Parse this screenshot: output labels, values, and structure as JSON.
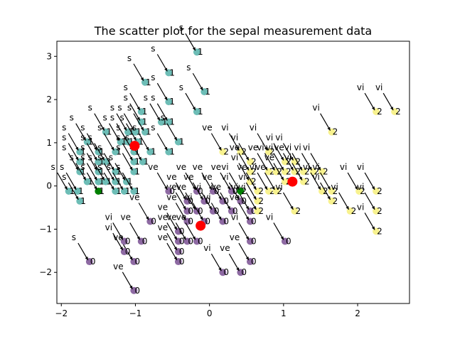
{
  "chart_data": {
    "type": "scatter",
    "title": "The scatter plot for the sepal measurement data",
    "xlabel": "",
    "ylabel": "",
    "xlim": [
      -2.06,
      2.7
    ],
    "ylim": [
      -2.72,
      3.35
    ],
    "xticks": [
      -2,
      -1,
      0,
      1,
      2
    ],
    "yticks": [
      -2,
      -1,
      0,
      1,
      2,
      3
    ],
    "grid": false,
    "legend": "none",
    "cluster_colors": {
      "0": "#8e6aa3",
      "1": "#6dbdb6",
      "2": "#f8f28f"
    },
    "highlight_colors": {
      "centroid": "#ff0000",
      "outlier": "#008000"
    },
    "points": [
      {
        "x": -0.87,
        "y": 2.4,
        "c": 1,
        "l": "s"
      },
      {
        "x": -0.55,
        "y": 2.62,
        "c": 1,
        "l": "s"
      },
      {
        "x": -0.17,
        "y": 3.1,
        "c": 1,
        "l": "s"
      },
      {
        "x": -0.07,
        "y": 2.18,
        "c": 1,
        "l": "s"
      },
      {
        "x": -0.17,
        "y": 1.72,
        "c": 1,
        "l": "s"
      },
      {
        "x": -0.55,
        "y": 1.95,
        "c": 1,
        "l": "s"
      },
      {
        "x": -0.92,
        "y": 1.72,
        "c": 1,
        "l": "s"
      },
      {
        "x": -0.92,
        "y": 1.48,
        "c": 1,
        "l": "s"
      },
      {
        "x": -0.65,
        "y": 1.48,
        "c": 1,
        "l": "s"
      },
      {
        "x": -0.55,
        "y": 1.48,
        "c": 1,
        "l": "s"
      },
      {
        "x": -1.4,
        "y": 1.25,
        "c": 1,
        "l": "s"
      },
      {
        "x": -1.1,
        "y": 1.25,
        "c": 1,
        "l": "s"
      },
      {
        "x": -1.0,
        "y": 1.25,
        "c": 1,
        "l": "s"
      },
      {
        "x": -0.87,
        "y": 1.25,
        "c": 1,
        "l": "s"
      },
      {
        "x": -1.65,
        "y": 1.02,
        "c": 1,
        "l": "s"
      },
      {
        "x": -1.2,
        "y": 1.02,
        "c": 1,
        "l": "s"
      },
      {
        "x": -1.1,
        "y": 1.02,
        "c": 1,
        "l": "s"
      },
      {
        "x": -0.97,
        "y": 1.02,
        "c": 1,
        "l": "s"
      },
      {
        "x": -0.42,
        "y": 1.02,
        "c": 1,
        "l": "s"
      },
      {
        "x": -1.75,
        "y": 0.79,
        "c": 1,
        "l": "s"
      },
      {
        "x": -1.5,
        "y": 0.79,
        "c": 1,
        "l": "s"
      },
      {
        "x": -1.27,
        "y": 0.79,
        "c": 1,
        "l": "s"
      },
      {
        "x": -1.02,
        "y": 0.79,
        "c": 1,
        "l": "s"
      },
      {
        "x": -0.8,
        "y": 0.79,
        "c": 1,
        "l": "s"
      },
      {
        "x": -0.55,
        "y": 0.79,
        "c": 1,
        "l": "s"
      },
      {
        "x": -1.75,
        "y": 0.56,
        "c": 1,
        "l": "s"
      },
      {
        "x": -1.5,
        "y": 0.56,
        "c": 1,
        "l": "s"
      },
      {
        "x": -1.4,
        "y": 0.56,
        "c": 1,
        "l": "s"
      },
      {
        "x": -1.02,
        "y": 0.56,
        "c": 1,
        "l": "s"
      },
      {
        "x": -0.9,
        "y": 0.56,
        "c": 1,
        "l": "s"
      },
      {
        "x": -1.75,
        "y": 0.33,
        "c": 1,
        "l": "s"
      },
      {
        "x": -1.5,
        "y": 0.33,
        "c": 1,
        "l": "s"
      },
      {
        "x": -1.27,
        "y": 0.33,
        "c": 1,
        "l": "s"
      },
      {
        "x": -1.02,
        "y": 0.33,
        "c": 1,
        "l": "s"
      },
      {
        "x": -1.65,
        "y": 0.1,
        "c": 1,
        "l": "s"
      },
      {
        "x": -1.5,
        "y": 0.1,
        "c": 1,
        "l": "s"
      },
      {
        "x": -1.4,
        "y": 0.1,
        "c": 1,
        "l": "s"
      },
      {
        "x": -1.27,
        "y": 0.1,
        "c": 1,
        "l": "s"
      },
      {
        "x": -1.12,
        "y": 0.1,
        "c": 1,
        "l": "s"
      },
      {
        "x": -1.9,
        "y": -0.12,
        "c": 1,
        "l": "s"
      },
      {
        "x": -1.78,
        "y": -0.12,
        "c": 1,
        "l": "s"
      },
      {
        "x": -1.27,
        "y": -0.12,
        "c": 1,
        "l": "s"
      },
      {
        "x": -1.15,
        "y": -0.12,
        "c": 1,
        "l": "s"
      },
      {
        "x": -1.02,
        "y": -0.12,
        "c": 1,
        "l": "s"
      },
      {
        "x": -1.75,
        "y": -0.35,
        "c": 1,
        "l": "s"
      },
      {
        "x": -1.62,
        "y": -1.75,
        "c": 0,
        "l": "s"
      },
      {
        "x": -1.02,
        "y": -2.42,
        "c": 0,
        "l": "ve"
      },
      {
        "x": -1.02,
        "y": -1.75,
        "c": 0,
        "l": "ve"
      },
      {
        "x": -1.15,
        "y": -1.52,
        "c": 0,
        "l": "vi"
      },
      {
        "x": -1.15,
        "y": -1.28,
        "c": 0,
        "l": "vi"
      },
      {
        "x": -0.92,
        "y": -1.28,
        "c": 0,
        "l": "ve"
      },
      {
        "x": -0.8,
        "y": -0.82,
        "c": 0,
        "l": "ve"
      },
      {
        "x": -0.42,
        "y": -1.05,
        "c": 0,
        "l": "ve"
      },
      {
        "x": -0.42,
        "y": -1.28,
        "c": 0,
        "l": "ve"
      },
      {
        "x": -0.42,
        "y": -1.52,
        "c": 0,
        "l": "ve"
      },
      {
        "x": -0.42,
        "y": -1.75,
        "c": 0,
        "l": "ve"
      },
      {
        "x": -0.3,
        "y": -1.28,
        "c": 0,
        "l": "ve"
      },
      {
        "x": -0.3,
        "y": -0.82,
        "c": 0,
        "l": "ve"
      },
      {
        "x": -0.3,
        "y": -0.58,
        "c": 0,
        "l": "ve"
      },
      {
        "x": -0.3,
        "y": -0.35,
        "c": 0,
        "l": "ve"
      },
      {
        "x": -0.17,
        "y": -1.28,
        "c": 0,
        "l": "ve"
      },
      {
        "x": -0.17,
        "y": -0.58,
        "c": 0,
        "l": "ve"
      },
      {
        "x": -0.17,
        "y": -0.12,
        "c": 0,
        "l": "ve"
      },
      {
        "x": -0.55,
        "y": -0.12,
        "c": 0,
        "l": "ve"
      },
      {
        "x": -0.07,
        "y": -0.82,
        "c": 0,
        "l": "vi"
      },
      {
        "x": -0.07,
        "y": -0.35,
        "c": 0,
        "l": "ve"
      },
      {
        "x": 0.05,
        "y": -0.58,
        "c": 0,
        "l": "vi"
      },
      {
        "x": 0.05,
        "y": -0.12,
        "c": 0,
        "l": "ve"
      },
      {
        "x": 0.18,
        "y": -2.0,
        "c": 0,
        "l": "vi"
      },
      {
        "x": 0.18,
        "y": -0.82,
        "c": 0,
        "l": "vi"
      },
      {
        "x": 0.18,
        "y": -0.35,
        "c": 0,
        "l": "ve"
      },
      {
        "x": 0.3,
        "y": -0.58,
        "c": 0,
        "l": "ve"
      },
      {
        "x": 0.3,
        "y": -0.12,
        "c": 0,
        "l": "ve"
      },
      {
        "x": 0.42,
        "y": -2.0,
        "c": 0,
        "l": "ve"
      },
      {
        "x": 0.42,
        "y": -0.35,
        "c": 0,
        "l": "vi"
      },
      {
        "x": 0.55,
        "y": -1.75,
        "c": 0,
        "l": "ve"
      },
      {
        "x": 0.55,
        "y": -1.28,
        "c": 0,
        "l": "vi"
      },
      {
        "x": 0.55,
        "y": -0.82,
        "c": 0,
        "l": "ve"
      },
      {
        "x": 0.55,
        "y": -0.58,
        "c": 0,
        "l": "vi"
      },
      {
        "x": 1.02,
        "y": -1.28,
        "c": 0,
        "l": "vi"
      },
      {
        "x": 0.18,
        "y": 0.79,
        "c": 2,
        "l": "ve"
      },
      {
        "x": 0.42,
        "y": 0.79,
        "c": 2,
        "l": "vi"
      },
      {
        "x": 0.55,
        "y": 0.56,
        "c": 2,
        "l": "vi"
      },
      {
        "x": 0.55,
        "y": 0.33,
        "c": 2,
        "l": "ve"
      },
      {
        "x": 0.55,
        "y": 0.1,
        "c": 2,
        "l": "vi"
      },
      {
        "x": 0.65,
        "y": -0.12,
        "c": 2,
        "l": "ve"
      },
      {
        "x": 0.65,
        "y": -0.35,
        "c": 2,
        "l": "vi"
      },
      {
        "x": 0.65,
        "y": -0.58,
        "c": 2,
        "l": "vi"
      },
      {
        "x": 0.8,
        "y": 0.79,
        "c": 2,
        "l": "vi"
      },
      {
        "x": 0.8,
        "y": 0.33,
        "c": 2,
        "l": "ve"
      },
      {
        "x": 0.8,
        "y": -0.12,
        "c": 2,
        "l": "vi"
      },
      {
        "x": 0.9,
        "y": 0.33,
        "c": 2,
        "l": "vi"
      },
      {
        "x": 0.9,
        "y": -0.12,
        "c": 2,
        "l": "ve"
      },
      {
        "x": 1.02,
        "y": 0.56,
        "c": 2,
        "l": "vi"
      },
      {
        "x": 1.02,
        "y": 0.33,
        "c": 2,
        "l": "vi"
      },
      {
        "x": 1.02,
        "y": 0.1,
        "c": 2,
        "l": "ve"
      },
      {
        "x": 1.15,
        "y": 0.56,
        "c": 2,
        "l": "vi"
      },
      {
        "x": 1.15,
        "y": 0.33,
        "c": 2,
        "l": "ve"
      },
      {
        "x": 1.15,
        "y": -0.58,
        "c": 2,
        "l": "vi"
      },
      {
        "x": 1.27,
        "y": 0.33,
        "c": 2,
        "l": "vi"
      },
      {
        "x": 1.27,
        "y": 0.1,
        "c": 2,
        "l": "vi"
      },
      {
        "x": 1.4,
        "y": 0.33,
        "c": 2,
        "l": "vi"
      },
      {
        "x": 1.52,
        "y": 0.33,
        "c": 2,
        "l": "vi"
      },
      {
        "x": 1.52,
        "y": -0.12,
        "c": 2,
        "l": "vi"
      },
      {
        "x": 1.65,
        "y": -0.12,
        "c": 2,
        "l": "vi"
      },
      {
        "x": 1.65,
        "y": -0.35,
        "c": 2,
        "l": "vi"
      },
      {
        "x": 1.65,
        "y": 1.25,
        "c": 2,
        "l": "vi"
      },
      {
        "x": 1.9,
        "y": -0.58,
        "c": 2,
        "l": "vi"
      },
      {
        "x": 2.02,
        "y": -0.12,
        "c": 2,
        "l": "vi"
      },
      {
        "x": 2.25,
        "y": -0.12,
        "c": 2,
        "l": "vi"
      },
      {
        "x": 2.25,
        "y": -0.58,
        "c": 2,
        "l": "vi"
      },
      {
        "x": 2.25,
        "y": -1.05,
        "c": 2,
        "l": "vi"
      },
      {
        "x": 2.25,
        "y": 1.72,
        "c": 2,
        "l": "vi"
      },
      {
        "x": 2.5,
        "y": 1.72,
        "c": 2,
        "l": "vi"
      }
    ],
    "centroids": [
      {
        "x": -1.01,
        "y": 0.93
      },
      {
        "x": -0.12,
        "y": -0.92
      },
      {
        "x": 1.12,
        "y": 0.1
      }
    ],
    "outliers": [
      {
        "x": -1.5,
        "y": -0.12,
        "c": 1,
        "l": "s"
      },
      {
        "x": 0.42,
        "y": -0.12,
        "c": 2,
        "l": "vi"
      }
    ]
  }
}
